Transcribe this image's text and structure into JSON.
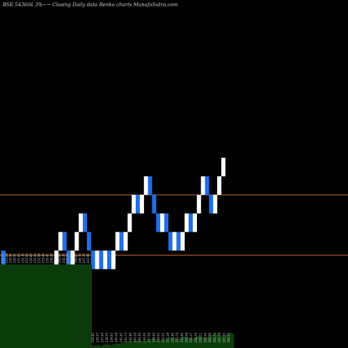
{
  "title": "BSE 543666  3%~~  Closing Daily data  Renko  charts MunafaSutra.com",
  "chart_data": {
    "type": "renko",
    "title": "BSE 543666  3%~~  Closing Daily data  Renko  charts MunafaSutra.com",
    "colors": {
      "up": "#ffffff",
      "down": "#1e6fe8",
      "level_line": "#c8743a",
      "volume": "#0b3d0b"
    },
    "ylim": [
      225,
      300
    ],
    "levels": [
      258,
      245
    ],
    "bricks": [
      {
        "dir": "down",
        "close": 242
      },
      {
        "dir": "down",
        "close": 238
      },
      {
        "dir": "down",
        "close": 234
      },
      {
        "dir": "up",
        "close": 238
      },
      {
        "dir": "down",
        "close": 234
      },
      {
        "dir": "up",
        "close": 238
      },
      {
        "dir": "down",
        "close": 234
      },
      {
        "dir": "up",
        "close": 238
      },
      {
        "dir": "down",
        "close": 234
      },
      {
        "dir": "down",
        "close": 230
      },
      {
        "dir": "up",
        "close": 234
      },
      {
        "dir": "up",
        "close": 238
      },
      {
        "dir": "up",
        "close": 242
      },
      {
        "dir": "up",
        "close": 246
      },
      {
        "dir": "up",
        "close": 250
      },
      {
        "dir": "down",
        "close": 246
      },
      {
        "dir": "down",
        "close": 242
      },
      {
        "dir": "up",
        "close": 246
      },
      {
        "dir": "up",
        "close": 250
      },
      {
        "dir": "up",
        "close": 254
      },
      {
        "dir": "down",
        "close": 250
      },
      {
        "dir": "down",
        "close": 246
      },
      {
        "dir": "down",
        "close": 242
      },
      {
        "dir": "up",
        "close": 246
      },
      {
        "dir": "down",
        "close": 242
      },
      {
        "dir": "up",
        "close": 246
      },
      {
        "dir": "down",
        "close": 242
      },
      {
        "dir": "up",
        "close": 246
      },
      {
        "dir": "up",
        "close": 250
      },
      {
        "dir": "down",
        "close": 246
      },
      {
        "dir": "up",
        "close": 250
      },
      {
        "dir": "up",
        "close": 254
      },
      {
        "dir": "up",
        "close": 258
      },
      {
        "dir": "down",
        "close": 254
      },
      {
        "dir": "up",
        "close": 258
      },
      {
        "dir": "up",
        "close": 262
      },
      {
        "dir": "down",
        "close": 258
      },
      {
        "dir": "down",
        "close": 254
      },
      {
        "dir": "down",
        "close": 250
      },
      {
        "dir": "up",
        "close": 254
      },
      {
        "dir": "down",
        "close": 250
      },
      {
        "dir": "down",
        "close": 246
      },
      {
        "dir": "up",
        "close": 250
      },
      {
        "dir": "down",
        "close": 246
      },
      {
        "dir": "up",
        "close": 250
      },
      {
        "dir": "up",
        "close": 254
      },
      {
        "dir": "down",
        "close": 250
      },
      {
        "dir": "up",
        "close": 254
      },
      {
        "dir": "up",
        "close": 258
      },
      {
        "dir": "up",
        "close": 262
      },
      {
        "dir": "down",
        "close": 258
      },
      {
        "dir": "down",
        "close": 254
      },
      {
        "dir": "up",
        "close": 258
      },
      {
        "dir": "up",
        "close": 262
      },
      {
        "dir": "up",
        "close": 266
      }
    ],
    "date_labels_left": [
      "232.52",
      "231.08",
      "230.90",
      "230.51",
      "231.60",
      "232.75",
      "231.94",
      "230.85",
      "231.00",
      "232.06",
      "233.40",
      "235.41",
      "238.20",
      "239.44",
      "240.90",
      "242.35",
      "243.60",
      "244.12",
      "245.87",
      "246.70",
      "247.35",
      "247.96"
    ],
    "date_labels_right": [
      "236.82",
      "236.07",
      "237.94",
      "238.55",
      "239.67",
      "240.28",
      "241.62",
      "241.73",
      "242.80",
      "243.29",
      "244.65",
      "246.00",
      "247.59",
      "248.60",
      "249.52",
      "250.31",
      "251.28",
      "252.40",
      "253.74",
      "254.66",
      "255.08",
      "256.27",
      "256.35",
      "258.11",
      "259.42",
      "260.56",
      "261.73",
      "262.08",
      "263.31",
      "264.22"
    ],
    "volume_left": 100,
    "volume_right": [
      8,
      7,
      9,
      6,
      10,
      12,
      9,
      11,
      14,
      13,
      16,
      18,
      20,
      17,
      22,
      24,
      21,
      19,
      23,
      26,
      28,
      25,
      22,
      24,
      27,
      30,
      33,
      29,
      26,
      31,
      35,
      32,
      28,
      30,
      34,
      37,
      33,
      30,
      36,
      40,
      44,
      38,
      35,
      37,
      41,
      45,
      42
    ]
  }
}
